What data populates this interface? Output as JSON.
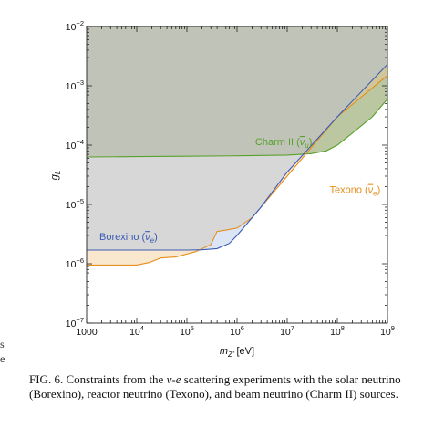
{
  "chart_data": {
    "type": "area",
    "xlabel_main": "m",
    "xlabel_sub": "Z'",
    "xlabel_unit": "[eV]",
    "ylabel_main": "g",
    "ylabel_sub": "L",
    "x_scale": "log",
    "y_scale": "log",
    "xlim": [
      1000,
      1000000000
    ],
    "ylim": [
      1e-07,
      0.01
    ],
    "x_ticks": [
      {
        "value": 1000,
        "base": "1000",
        "exp": ""
      },
      {
        "value": 10000,
        "base": "10",
        "exp": "4"
      },
      {
        "value": 100000,
        "base": "10",
        "exp": "5"
      },
      {
        "value": 1000000,
        "base": "10",
        "exp": "6"
      },
      {
        "value": 10000000,
        "base": "10",
        "exp": "7"
      },
      {
        "value": 100000000,
        "base": "10",
        "exp": "8"
      },
      {
        "value": 1000000000,
        "base": "10",
        "exp": "9"
      }
    ],
    "y_ticks": [
      {
        "value": 1e-07,
        "base": "10",
        "exp": "−7"
      },
      {
        "value": 1e-06,
        "base": "10",
        "exp": "−6"
      },
      {
        "value": 1e-05,
        "base": "10",
        "exp": "−5"
      },
      {
        "value": 0.0001,
        "base": "10",
        "exp": "−4"
      },
      {
        "value": 0.001,
        "base": "10",
        "exp": "−3"
      },
      {
        "value": 0.01,
        "base": "10",
        "exp": "−2"
      }
    ],
    "grid": false,
    "series": [
      {
        "name": "Charm II",
        "label_text": "Charm II (",
        "label_symbol": "ν",
        "label_sub": "μ",
        "label_close": ")",
        "color": "#5aa02c",
        "fill": "#5a7a1e",
        "x": [
          1000,
          10000,
          100000,
          1000000,
          10000000,
          30000000,
          60000000,
          100000000,
          200000000,
          500000000,
          1000000000
        ],
        "y": [
          6.3e-05,
          6.4e-05,
          6.5e-05,
          6.6e-05,
          6.8e-05,
          7.2e-05,
          8e-05,
          0.0001,
          0.00016,
          0.0003,
          0.0006
        ]
      },
      {
        "name": "Texono",
        "label_text": "Texono (",
        "label_symbol": "ν",
        "label_sub": "e",
        "label_close": ")",
        "color": "#e58f1c",
        "fill": "#f0c68a",
        "x": [
          1000,
          10000,
          18000,
          30000,
          60000,
          150000,
          300000,
          400000,
          500000,
          1000000,
          2000000,
          10000000,
          100000000,
          1000000000
        ],
        "y": [
          9.5e-07,
          9.5e-07,
          1.05e-06,
          1.25e-06,
          1.3e-06,
          1.6e-06,
          2.1e-06,
          3.5e-06,
          3.6e-06,
          4e-06,
          6e-06,
          3e-05,
          0.0003,
          0.0015
        ]
      },
      {
        "name": "Borexino",
        "label_text": "Borexino (",
        "label_symbol": "ν",
        "label_sub": "e",
        "label_close": ")",
        "color": "#3b5bb5",
        "fill": "#a9c1e8",
        "x": [
          1000,
          100000,
          200000,
          400000,
          700000,
          1000000,
          3000000,
          10000000,
          100000000,
          1000000000
        ],
        "y": [
          1.7e-06,
          1.7e-06,
          1.72e-06,
          1.8e-06,
          2.2e-06,
          3e-06,
          9e-06,
          3.5e-05,
          0.0003,
          0.0023
        ]
      }
    ],
    "annotations": [
      {
        "series": "Charm II",
        "x": 2300000,
        "y": 0.0001
      },
      {
        "series": "Texono",
        "x": 70000000,
        "y": 1.55e-05
      },
      {
        "series": "Borexino",
        "x": 1800,
        "y": 2.5e-06
      }
    ]
  },
  "caption": {
    "prefix": "FIG. 6. Constraints from the ",
    "nu": "ν",
    "dash": "-",
    "e": "e",
    "rest": " scattering experiments with the solar neutrino (Borexino), reactor neutrino (Texono), and beam neutrino (Charm II) sources."
  },
  "margin_fragments": [
    "s",
    "e"
  ]
}
